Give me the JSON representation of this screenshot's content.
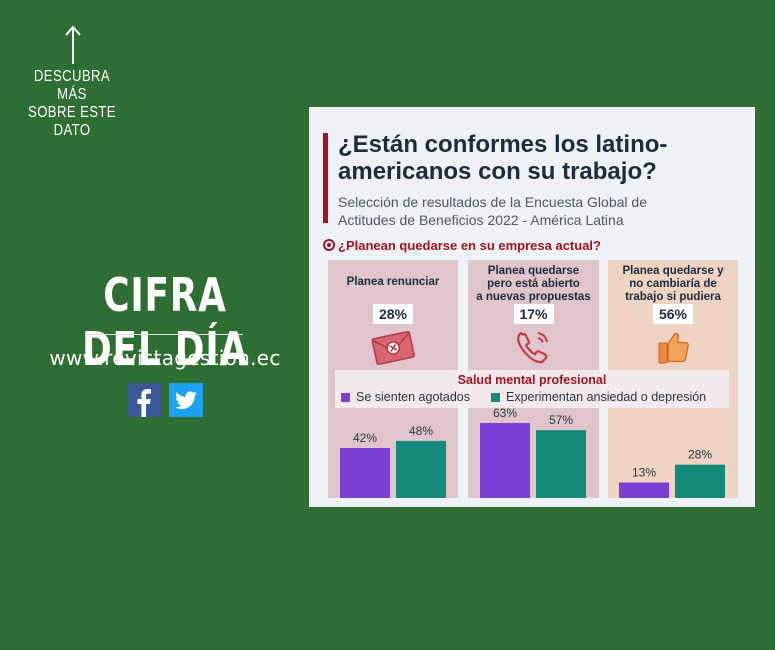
{
  "promo": {
    "descubra_line1": "DESCUBRA MÁS",
    "descubra_line2": "SOBRE ESTE",
    "descubra_line3": "DATO",
    "headline": "CIFRA DEL DÍA",
    "website": "www.revistagestion.ec",
    "social": [
      {
        "icon": "facebook-icon",
        "color": "#3b5998"
      },
      {
        "icon": "twitter-icon",
        "color": "#1da1f2"
      }
    ]
  },
  "card": {
    "title_line1": "¿Están conformes los latino-",
    "title_line2": "americanos con su trabajo?",
    "subtitle_line1": "Selección de resultados de la Encuesta Global de",
    "subtitle_line2": "Actitudes de Beneficios 2022 - América Latina",
    "question": "¿Planean quedarse en su empresa actual?",
    "panels": [
      {
        "label": [
          "Planea renunciar"
        ],
        "percent": "28%",
        "icon": "envelope-icon"
      },
      {
        "label": [
          "Planea quedarse",
          "pero está abierto",
          "a nuevas propuestas"
        ],
        "percent": "17%",
        "icon": "phone-icon"
      },
      {
        "label": [
          "Planea quedarse y",
          "no cambiaría de",
          "trabajo si pudiera"
        ],
        "percent": "56%",
        "icon": "thumbs-up-icon"
      }
    ],
    "legend_title": "Salud mental profesional"
  },
  "chart_data": {
    "type": "bar",
    "categories": [
      "Planea renunciar",
      "Planea quedarse pero está abierto a nuevas propuestas",
      "Planea quedarse y no cambiaría de trabajo si pudiera"
    ],
    "series": [
      {
        "name": "Se sienten agotados",
        "values": [
          42,
          63,
          13
        ],
        "color": "#7b3fd4"
      },
      {
        "name": "Experimentan ansiedad o depresión",
        "values": [
          48,
          57,
          28
        ],
        "color": "#148a7b"
      }
    ],
    "unit": "%",
    "ylim": [
      0,
      100
    ]
  }
}
